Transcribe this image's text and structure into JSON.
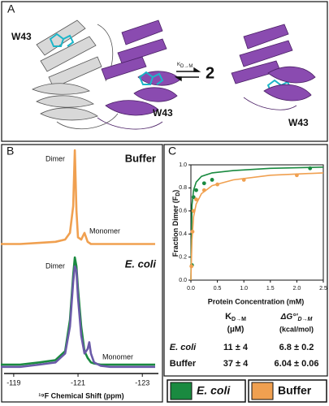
{
  "panel_labels": [
    "A",
    "B",
    "C"
  ],
  "panel_a": {
    "w43": [
      "W43",
      "W43",
      "W43"
    ],
    "k": "K",
    "k_sub": "D→M",
    "stoich": "2"
  },
  "chart_data": [
    {
      "type": "line",
      "x_label": "¹⁹F Chemical Shift (ppm)",
      "x": [
        -118.6,
        -119.2,
        -119.8,
        -120.3,
        -120.6,
        -120.75,
        -120.85,
        -120.9,
        -120.95,
        -121.0,
        -121.1,
        -121.2,
        -121.3,
        -121.35,
        -121.4,
        -121.5,
        -121.7,
        -122.0,
        -122.5,
        -123.0,
        -123.4
      ],
      "xlim": [
        -118.7,
        -123.5
      ],
      "xticks": [
        -119,
        -121,
        -123
      ],
      "ylim": [
        0,
        100
      ],
      "series": [
        {
          "name": "Buffer",
          "color": "#f0a050",
          "values": [
            58,
            58,
            58.5,
            59,
            60,
            63,
            75,
            100,
            73,
            61,
            60,
            63,
            59,
            58.5,
            58,
            58,
            58,
            58,
            58,
            58,
            58
          ]
        },
        {
          "name": "E. coli",
          "color": "#1a8a40",
          "values": [
            4,
            4,
            5,
            6,
            10,
            24,
            44,
            52,
            48,
            38,
            21,
            10,
            7,
            6,
            5,
            4.5,
            4,
            4,
            4,
            4,
            4
          ]
        },
        {
          "color": "#6a5aa8",
          "values": [
            3,
            3,
            4,
            5,
            9,
            21,
            41,
            48,
            46,
            34,
            17,
            9,
            11,
            14,
            9,
            5,
            3.5,
            3,
            3,
            3,
            3
          ]
        }
      ],
      "annotations": [
        "Dimer",
        "Monomer",
        "Dimer",
        "Monomer"
      ]
    },
    {
      "type": "scatter",
      "x_label": "Protein Concentration (mM)",
      "y_label": "Fraction Dimer (F",
      "y_label_sub": "D",
      "y_label_end": ")",
      "xlim": [
        0,
        2.5
      ],
      "ylim": [
        0,
        1.0
      ],
      "xticks": [
        {
          "value": 0,
          "label": "0.0"
        },
        0.5,
        {
          "value": 1,
          "label": "1.0"
        },
        1.5,
        {
          "value": 2,
          "label": "2.0"
        },
        2.5
      ],
      "yticks": [
        {
          "value": 0,
          "label": "0.0"
        },
        0.2,
        0.4,
        0.6,
        0.8,
        {
          "value": 1,
          "label": "1.0"
        }
      ],
      "series": [
        {
          "name": "E. coli",
          "color": "#1a8a40",
          "x": [
            0.02,
            0.05,
            0.1,
            0.25,
            0.4,
            2.25
          ],
          "values": [
            0.13,
            0.72,
            0.78,
            0.84,
            0.87,
            0.97
          ],
          "fit_x": [
            0,
            0.02,
            0.05,
            0.1,
            0.2,
            0.4,
            0.8,
            1.5,
            2.5
          ],
          "fit_values": [
            0,
            0.65,
            0.78,
            0.85,
            0.9,
            0.93,
            0.95,
            0.97,
            0.98
          ]
        },
        {
          "name": "Buffer",
          "color": "#f0a050",
          "x": [
            0.01,
            0.03,
            0.05,
            0.1,
            0.25,
            0.5,
            1.0,
            2.0
          ],
          "values": [
            0.12,
            0.42,
            0.6,
            0.7,
            0.78,
            0.83,
            0.87,
            0.91
          ],
          "fit_x": [
            0,
            0.02,
            0.05,
            0.1,
            0.2,
            0.4,
            0.8,
            1.5,
            2.5
          ],
          "fit_values": [
            0,
            0.35,
            0.55,
            0.66,
            0.75,
            0.82,
            0.87,
            0.91,
            0.93
          ]
        }
      ]
    }
  ],
  "table": {
    "headers": [
      {
        "main": "K",
        "sub": "D→M",
        "unit": "(µM)"
      },
      {
        "main": "ΔG°'",
        "sub": "D→M",
        "unit": "(kcal/mol)"
      }
    ],
    "rows": [
      [
        "E. coli",
        "11 ± 4",
        "6.8 ± 0.2"
      ],
      [
        "Buffer",
        "37 ± 4",
        "6.04 ± 0.06"
      ]
    ]
  }
}
